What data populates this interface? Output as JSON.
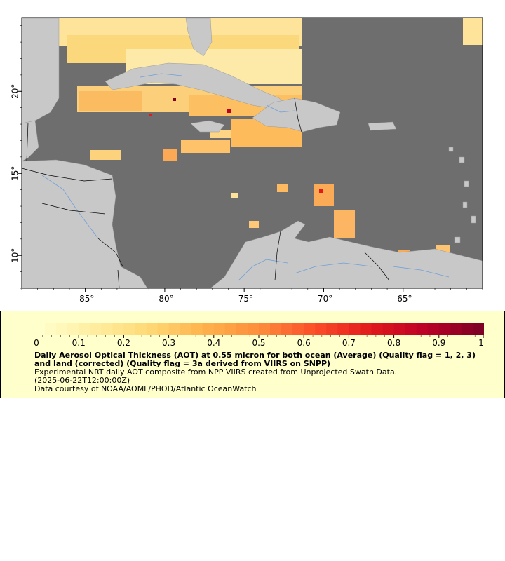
{
  "map": {
    "lon_range": [
      -89,
      -60
    ],
    "lat_range": [
      8,
      24.5
    ],
    "x_ticks": [
      {
        "value": -85,
        "label": "-85°"
      },
      {
        "value": -80,
        "label": "-80°"
      },
      {
        "value": -75,
        "label": "-75°"
      },
      {
        "value": -70,
        "label": "-70°"
      },
      {
        "value": -65,
        "label": "-65°"
      }
    ],
    "y_ticks": [
      {
        "value": 20,
        "label": "20°"
      },
      {
        "value": 15,
        "label": "15°"
      },
      {
        "value": 10,
        "label": "10°"
      }
    ],
    "colors": {
      "ocean_no_data": "#6e6e6e",
      "land": "#c8c8c8",
      "rivers": "#6f9fd8",
      "borders": "#000000"
    }
  },
  "legend": {
    "ticks": [
      "0",
      "0.1",
      "0.2",
      "0.3",
      "0.4",
      "0.5",
      "0.6",
      "0.7",
      "0.8",
      "0.9",
      "1"
    ],
    "range": [
      0,
      1
    ],
    "title": "Daily Aerosol Optical Thickness (AOT) at 0.55 micron for both ocean (Average) (Quality flag = 1, 2, 3) and land (corrected) (Quality flag = 3a derived from VIIRS on SNPP)",
    "line1": "Experimental NRT daily AOT composite from NPP VIIRS created from Unprojected Swath Data.",
    "line2": "(2025-06-22T12:00:00Z)",
    "line3": "Data courtesy of NOAA/AOML/PHOD/Atlantic OceanWatch",
    "colors": [
      "#ffffcc",
      "#ffeda0",
      "#fed976",
      "#feb24c",
      "#fd8d3c",
      "#fc4e2a",
      "#e31a1c",
      "#bd0026",
      "#800026"
    ]
  }
}
